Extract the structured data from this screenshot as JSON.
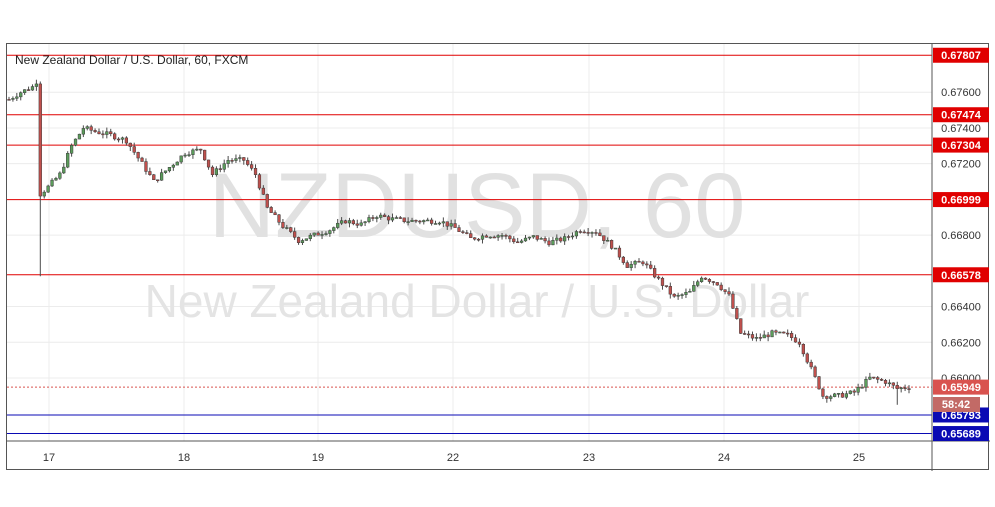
{
  "title": "New Zealand Dollar / U.S. Dollar, 60, FXCM",
  "watermark": {
    "symbol": "NZDUSD, 60",
    "description": "New Zealand Dollar / U.S. Dollar"
  },
  "countdown": "58:42",
  "colors": {
    "up": "#5b9c5b",
    "down": "#c0504d",
    "resistance": "#e00000",
    "support": "#0a0ab4",
    "current": "#d9534f",
    "countdown_bg": "#c26a66"
  },
  "chart_data": {
    "type": "candlestick",
    "title": "New Zealand Dollar / U.S. Dollar, 60, FXCM",
    "ylim": [
      0.655,
      0.68
    ],
    "xlabels": [
      "17",
      "18",
      "19",
      "22",
      "23",
      "24",
      "25"
    ],
    "ytick_labels": [
      "0.67600",
      "0.67400",
      "0.67200",
      "0.66800",
      "0.66400",
      "0.66200",
      "0.66000"
    ],
    "ytick_values": [
      0.676,
      0.674,
      0.672,
      0.668,
      0.664,
      0.662,
      0.66
    ],
    "resistance_levels": [
      {
        "label": "0.67807",
        "value": 0.67807
      },
      {
        "label": "0.67474",
        "value": 0.67474
      },
      {
        "label": "0.67304",
        "value": 0.67304
      },
      {
        "label": "0.66999",
        "value": 0.66999
      },
      {
        "label": "0.66578",
        "value": 0.66578
      }
    ],
    "support_levels": [
      {
        "label": "0.65793",
        "value": 0.65793
      },
      {
        "label": "0.65689",
        "value": 0.65689
      }
    ],
    "current_price": {
      "label": "0.65949",
      "value": 0.65949
    },
    "close_path": [
      [
        0,
        0.6756
      ],
      [
        3,
        0.676
      ],
      [
        6,
        0.6763
      ],
      [
        7,
        0.6766
      ],
      [
        8,
        0.6703
      ],
      [
        10,
        0.6707
      ],
      [
        13,
        0.6714
      ],
      [
        16,
        0.673
      ],
      [
        19,
        0.674
      ],
      [
        22,
        0.6738
      ],
      [
        26,
        0.6736
      ],
      [
        30,
        0.6733
      ],
      [
        34,
        0.672
      ],
      [
        37,
        0.671
      ],
      [
        41,
        0.6718
      ],
      [
        45,
        0.6726
      ],
      [
        49,
        0.6728
      ],
      [
        52,
        0.6714
      ],
      [
        56,
        0.6722
      ],
      [
        60,
        0.6722
      ],
      [
        63,
        0.6714
      ],
      [
        66,
        0.6695
      ],
      [
        70,
        0.6685
      ],
      [
        74,
        0.6677
      ],
      [
        78,
        0.668
      ],
      [
        82,
        0.6683
      ],
      [
        86,
        0.6688
      ],
      [
        90,
        0.6686
      ],
      [
        94,
        0.6691
      ],
      [
        98,
        0.6689
      ],
      [
        102,
        0.6688
      ],
      [
        106,
        0.6688
      ],
      [
        110,
        0.6688
      ],
      [
        114,
        0.6684
      ],
      [
        118,
        0.6678
      ],
      [
        122,
        0.668
      ],
      [
        126,
        0.668
      ],
      [
        130,
        0.6676
      ],
      [
        134,
        0.6679
      ],
      [
        138,
        0.6676
      ],
      [
        142,
        0.6678
      ],
      [
        146,
        0.6683
      ],
      [
        150,
        0.6682
      ],
      [
        154,
        0.6674
      ],
      [
        158,
        0.6663
      ],
      [
        162,
        0.6665
      ],
      [
        166,
        0.6655
      ],
      [
        170,
        0.6645
      ],
      [
        174,
        0.6648
      ],
      [
        177,
        0.6657
      ],
      [
        181,
        0.6653
      ],
      [
        184,
        0.6646
      ],
      [
        187,
        0.6625
      ],
      [
        191,
        0.6622
      ],
      [
        195,
        0.6625
      ],
      [
        199,
        0.6624
      ],
      [
        202,
        0.662
      ],
      [
        205,
        0.6605
      ],
      [
        208,
        0.659
      ],
      [
        212,
        0.659
      ],
      [
        216,
        0.6592
      ],
      [
        220,
        0.66
      ],
      [
        224,
        0.6598
      ],
      [
        227,
        0.6594
      ],
      [
        230,
        0.6595
      ]
    ]
  }
}
